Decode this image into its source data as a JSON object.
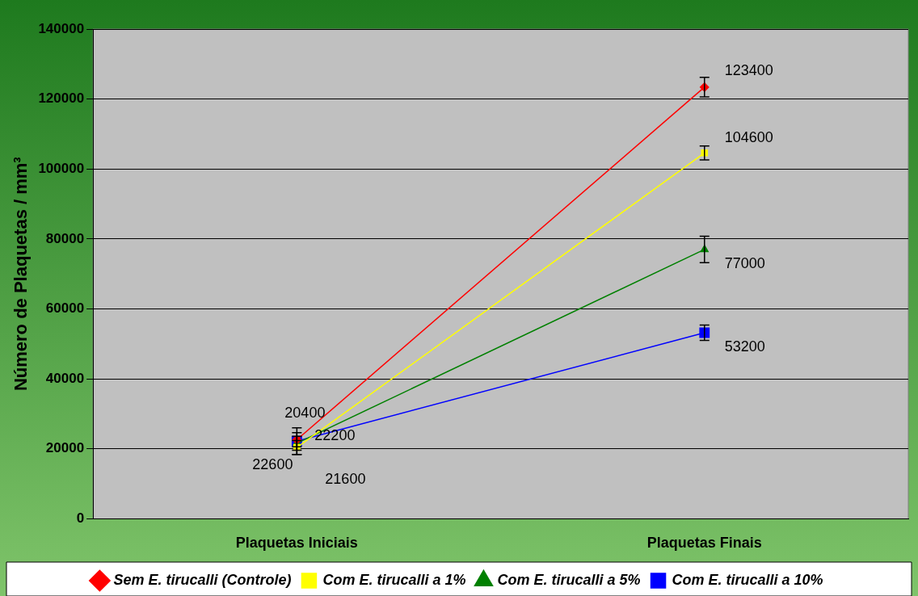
{
  "chart_data": {
    "type": "line",
    "ylabel": "Número de Plaquetas / mm³",
    "categories": [
      "Plaquetas Iniciais",
      "Plaquetas Finais"
    ],
    "series": [
      {
        "name": "Sem E. tirucalli (Controle)",
        "color": "#ff0000",
        "marker": "diamond",
        "values": [
          22600,
          123400
        ],
        "errors": [
          2000,
          2800
        ]
      },
      {
        "name": "Com E. tirucalli a 1%",
        "color": "#ffff00",
        "marker": "square",
        "values": [
          20400,
          104600
        ],
        "errors": [
          2000,
          2000
        ]
      },
      {
        "name": "Com E. tirucalli a 5%",
        "color": "#008000",
        "marker": "triangle",
        "values": [
          21600,
          77000
        ],
        "errors": [
          2000,
          3800
        ]
      },
      {
        "name": "Com E. tirucalli a 10%",
        "color": "#0000ff",
        "marker": "square",
        "values": [
          22200,
          53200
        ],
        "errors": [
          3800,
          2200
        ]
      }
    ],
    "ylim": [
      0,
      140000
    ],
    "yticks": [
      0,
      20000,
      40000,
      60000,
      80000,
      100000,
      120000,
      140000
    ],
    "grid": "y",
    "legend": "bottom",
    "data_labels": true
  }
}
